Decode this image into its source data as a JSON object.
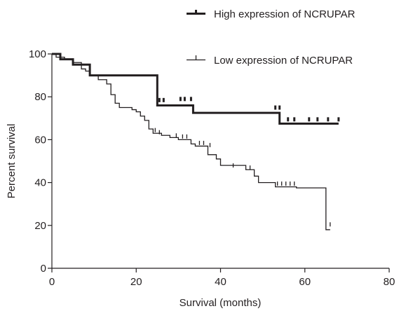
{
  "chart_data": {
    "type": "line",
    "title": "",
    "xlabel": "Survival (months)",
    "ylabel": "Percent survival",
    "xlim": [
      0,
      80
    ],
    "ylim": [
      0,
      100
    ],
    "xticks": [
      0,
      20,
      40,
      60,
      80
    ],
    "yticks": [
      0,
      20,
      40,
      60,
      80,
      100
    ],
    "grid": false,
    "legend_position": "top-right",
    "series": [
      {
        "name": "High expression of NCRUPAR",
        "color": "#231f20",
        "step": [
          [
            0,
            100
          ],
          [
            2,
            97.5
          ],
          [
            5,
            95
          ],
          [
            9,
            90
          ],
          [
            25,
            76
          ],
          [
            33.5,
            72.5
          ],
          [
            54,
            67.5
          ],
          [
            68,
            67.5
          ]
        ],
        "censored": [
          [
            25.5,
            77.5
          ],
          [
            26.5,
            77.5
          ],
          [
            30.5,
            78
          ],
          [
            31.5,
            78
          ],
          [
            33,
            78
          ],
          [
            53,
            74
          ],
          [
            54,
            74
          ],
          [
            56,
            68.5
          ],
          [
            57.5,
            68.5
          ],
          [
            61,
            68.5
          ],
          [
            63,
            68.5
          ],
          [
            65.5,
            68.5
          ],
          [
            68,
            68.5
          ]
        ]
      },
      {
        "name": "Low expression of NCRUPAR",
        "color": "#231f20",
        "step": [
          [
            0,
            100
          ],
          [
            1,
            98.5
          ],
          [
            3,
            97.5
          ],
          [
            5,
            96
          ],
          [
            7,
            93
          ],
          [
            8,
            92
          ],
          [
            9,
            90
          ],
          [
            11,
            88
          ],
          [
            13,
            86
          ],
          [
            14,
            81
          ],
          [
            15,
            77
          ],
          [
            16,
            75
          ],
          [
            19,
            74
          ],
          [
            20,
            73
          ],
          [
            21,
            71
          ],
          [
            22,
            69
          ],
          [
            23,
            65
          ],
          [
            24,
            63
          ],
          [
            26,
            62
          ],
          [
            28,
            61
          ],
          [
            30,
            60
          ],
          [
            33,
            58
          ],
          [
            34,
            57
          ],
          [
            37,
            53
          ],
          [
            39,
            51
          ],
          [
            40,
            48
          ],
          [
            46,
            46
          ],
          [
            48,
            43
          ],
          [
            49,
            40
          ],
          [
            53,
            38
          ],
          [
            57,
            38
          ],
          [
            58,
            37.5
          ],
          [
            65,
            37.5
          ],
          [
            65,
            18
          ],
          [
            66,
            18
          ]
        ],
        "censored": [
          [
            24.5,
            63.5
          ],
          [
            25.5,
            62.5
          ],
          [
            29.5,
            61
          ],
          [
            31,
            60.5
          ],
          [
            32,
            60.5
          ],
          [
            35,
            57.5
          ],
          [
            36,
            57.5
          ],
          [
            37.5,
            56.5
          ],
          [
            43,
            47
          ],
          [
            47,
            46
          ],
          [
            53.5,
            38.5
          ],
          [
            54.5,
            38.5
          ],
          [
            55.5,
            38.5
          ],
          [
            56.5,
            38.5
          ],
          [
            57.5,
            38.5
          ],
          [
            66,
            19.5
          ]
        ]
      }
    ]
  }
}
